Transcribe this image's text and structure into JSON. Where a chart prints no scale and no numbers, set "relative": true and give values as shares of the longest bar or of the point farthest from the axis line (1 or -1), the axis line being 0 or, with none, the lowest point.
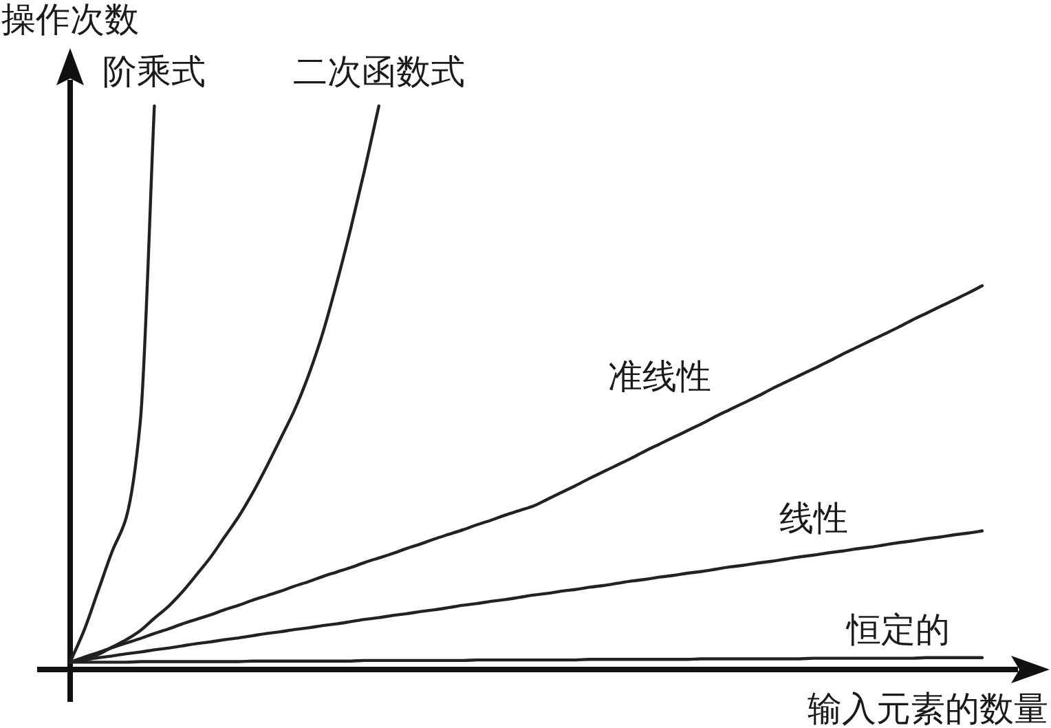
{
  "chart_data": {
    "type": "line",
    "relative": true,
    "line_style": "solid",
    "ylabel": "操作次数",
    "xlabel": "输入元素的数量",
    "categories": [
      null,
      null,
      null,
      null,
      null,
      null,
      null,
      null,
      null,
      null,
      null,
      null,
      null,
      null,
      null,
      null,
      null,
      null,
      null,
      null,
      null,
      null,
      null,
      null,
      null,
      null,
      null,
      null,
      null,
      null,
      null,
      null,
      null,
      null,
      null,
      null,
      null,
      null,
      null,
      null,
      null,
      null,
      null,
      null,
      null,
      null,
      null,
      null,
      null,
      null,
      null,
      null,
      null,
      null,
      null,
      null,
      null,
      null,
      null,
      null,
      null,
      null,
      null,
      null,
      null,
      null
    ],
    "series": [
      {
        "name": "阶乘式",
        "color": "#222222",
        "values": [
          0.013,
          0.07,
          0.14,
          0.21,
          0.27,
          0.44,
          1,
          null,
          null,
          null,
          null,
          null,
          null,
          null,
          null,
          null,
          null,
          null,
          null,
          null,
          null,
          null,
          null,
          null,
          null,
          null,
          null,
          null,
          null,
          null,
          null,
          null,
          null,
          null,
          null,
          null,
          null,
          null,
          null,
          null,
          null,
          null,
          null,
          null,
          null,
          null,
          null,
          null,
          null,
          null,
          null,
          null,
          null,
          null,
          null,
          null,
          null,
          null,
          null,
          null,
          null,
          null,
          null,
          null,
          null,
          null
        ]
      },
      {
        "name": "二次函数式",
        "color": "#222222",
        "values": [
          0.013,
          0.02,
          0.027,
          0.04,
          0.053,
          0.069,
          0.091,
          0.112,
          0.138,
          0.168,
          0.199,
          0.235,
          0.271,
          0.313,
          0.36,
          0.41,
          0.461,
          0.523,
          0.597,
          0.686,
          0.783,
          0.888,
          1,
          null,
          null,
          null,
          null,
          null,
          null,
          null,
          null,
          null,
          null,
          null,
          null,
          null,
          null,
          null,
          null,
          null,
          null,
          null,
          null,
          null,
          null,
          null,
          null,
          null,
          null,
          null,
          null,
          null,
          null,
          null,
          null,
          null,
          null,
          null,
          null,
          null,
          null,
          null,
          null,
          null,
          null,
          null
        ]
      },
      {
        "name": "准线性",
        "color": "#222222",
        "values": [
          0.013,
          0.022,
          0.03,
          0.039,
          0.047,
          0.055,
          0.064,
          0.072,
          0.081,
          0.089,
          0.097,
          0.106,
          0.114,
          0.123,
          0.131,
          0.139,
          0.148,
          0.156,
          0.165,
          0.173,
          0.181,
          0.19,
          0.198,
          0.206,
          0.215,
          0.223,
          0.232,
          0.24,
          0.248,
          0.257,
          0.265,
          0.274,
          0.282,
          0.29,
          0.302,
          0.314,
          0.326,
          0.339,
          0.351,
          0.363,
          0.375,
          0.388,
          0.4,
          0.412,
          0.424,
          0.436,
          0.449,
          0.461,
          0.473,
          0.485,
          0.498,
          0.51,
          0.522,
          0.534,
          0.546,
          0.559,
          0.571,
          0.583,
          0.595,
          0.607,
          0.62,
          0.632,
          0.644,
          0.656,
          0.668,
          0.681
        ]
      },
      {
        "name": "线性",
        "color": "#222222",
        "values": [
          0.013,
          0.017,
          0.021,
          0.024,
          0.028,
          0.031,
          0.035,
          0.038,
          0.042,
          0.046,
          0.049,
          0.053,
          0.056,
          0.06,
          0.064,
          0.067,
          0.071,
          0.074,
          0.078,
          0.081,
          0.085,
          0.089,
          0.092,
          0.096,
          0.099,
          0.103,
          0.106,
          0.11,
          0.114,
          0.117,
          0.121,
          0.124,
          0.128,
          0.132,
          0.135,
          0.139,
          0.142,
          0.146,
          0.149,
          0.153,
          0.157,
          0.16,
          0.164,
          0.167,
          0.171,
          0.174,
          0.178,
          0.182,
          0.185,
          0.189,
          0.192,
          0.196,
          0.2,
          0.203,
          0.207,
          0.21,
          0.214,
          0.217,
          0.221,
          0.225,
          0.228,
          0.232,
          0.235,
          0.239,
          0.242,
          0.246
        ]
      },
      {
        "name": "恒定的",
        "color": "#222222",
        "values": [
          0.013,
          0.013,
          0.013,
          0.013,
          0.013,
          0.014,
          0.014,
          0.014,
          0.014,
          0.014,
          0.014,
          0.014,
          0.014,
          0.015,
          0.015,
          0.015,
          0.015,
          0.015,
          0.015,
          0.015,
          0.015,
          0.016,
          0.016,
          0.016,
          0.016,
          0.016,
          0.016,
          0.016,
          0.016,
          0.017,
          0.017,
          0.017,
          0.017,
          0.017,
          0.017,
          0.017,
          0.017,
          0.018,
          0.018,
          0.018,
          0.018,
          0.018,
          0.018,
          0.018,
          0.018,
          0.019,
          0.019,
          0.019,
          0.019,
          0.019,
          0.019,
          0.019,
          0.019,
          0.02,
          0.02,
          0.02,
          0.02,
          0.02,
          0.02,
          0.02,
          0.02,
          0.021,
          0.021,
          0.021,
          0.021,
          0.021
        ]
      }
    ]
  }
}
